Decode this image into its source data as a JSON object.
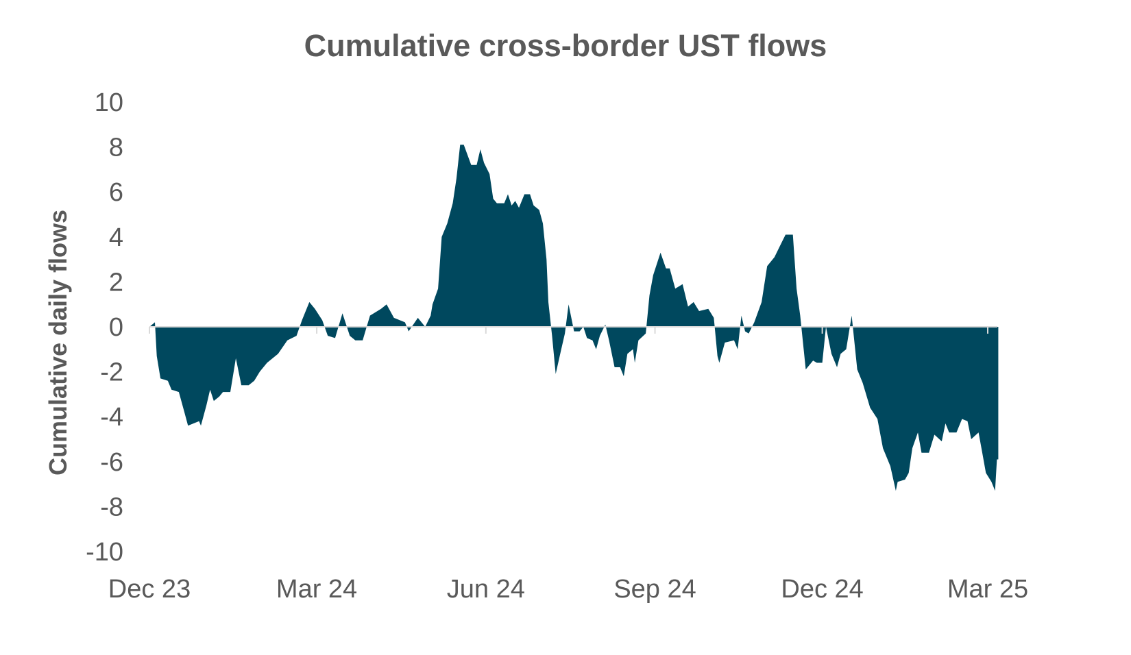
{
  "chart_data": {
    "type": "area",
    "title": "Cumulative cross-border UST flows",
    "xlabel": "",
    "ylabel": "Cumulative daily flows",
    "ylim": [
      -10,
      10
    ],
    "yticks": [
      10,
      8,
      6,
      4,
      2,
      0,
      -2,
      -4,
      -6,
      -8,
      -10
    ],
    "xticks": [
      {
        "label": "Dec 23",
        "date": "2023-12-01"
      },
      {
        "label": "Mar 24",
        "date": "2024-03-01"
      },
      {
        "label": "Jun 24",
        "date": "2024-06-01"
      },
      {
        "label": "Sep 24",
        "date": "2024-09-01"
      },
      {
        "label": "Dec 24",
        "date": "2024-12-01"
      },
      {
        "label": "Mar 25",
        "date": "2025-03-01"
      }
    ],
    "grid": false,
    "legend": "none",
    "color": "#00485E",
    "series": [
      {
        "points": [
          [
            "2023-12-01",
            0
          ],
          [
            "2023-12-04",
            0.2
          ],
          [
            "2023-12-05",
            -1.3
          ],
          [
            "2023-12-07",
            -2.3
          ],
          [
            "2023-12-11",
            -2.4
          ],
          [
            "2023-12-13",
            -2.8
          ],
          [
            "2023-12-17",
            -2.9
          ],
          [
            "2023-12-20",
            -3.8
          ],
          [
            "2023-12-22",
            -4.4
          ],
          [
            "2023-12-28",
            -4.2
          ],
          [
            "2023-12-29",
            -4.4
          ],
          [
            "2024-01-01",
            -3.5
          ],
          [
            "2024-01-03",
            -2.8
          ],
          [
            "2024-01-05",
            -3.3
          ],
          [
            "2024-01-08",
            -3.1
          ],
          [
            "2024-01-10",
            -2.9
          ],
          [
            "2024-01-14",
            -2.9
          ],
          [
            "2024-01-17",
            -1.4
          ],
          [
            "2024-01-20",
            -2.6
          ],
          [
            "2024-01-24",
            -2.6
          ],
          [
            "2024-01-27",
            -2.4
          ],
          [
            "2024-01-30",
            -2.0
          ],
          [
            "2024-02-03",
            -1.6
          ],
          [
            "2024-02-09",
            -1.2
          ],
          [
            "2024-02-14",
            -0.6
          ],
          [
            "2024-02-19",
            -0.4
          ],
          [
            "2024-02-22",
            0.3
          ],
          [
            "2024-02-26",
            1.1
          ],
          [
            "2024-02-29",
            0.8
          ],
          [
            "2024-03-04",
            0.3
          ],
          [
            "2024-03-07",
            -0.4
          ],
          [
            "2024-03-11",
            -0.5
          ],
          [
            "2024-03-15",
            0.6
          ],
          [
            "2024-03-19",
            -0.4
          ],
          [
            "2024-03-22",
            -0.6
          ],
          [
            "2024-03-26",
            -0.6
          ],
          [
            "2024-03-30",
            0.5
          ],
          [
            "2024-04-05",
            0.8
          ],
          [
            "2024-04-08",
            1.0
          ],
          [
            "2024-04-12",
            0.4
          ],
          [
            "2024-04-18",
            0.2
          ],
          [
            "2024-04-20",
            -0.2
          ],
          [
            "2024-04-25",
            0.4
          ],
          [
            "2024-04-29",
            0
          ],
          [
            "2024-05-02",
            0.5
          ],
          [
            "2024-05-03",
            1.0
          ],
          [
            "2024-05-06",
            1.7
          ],
          [
            "2024-05-08",
            4.0
          ],
          [
            "2024-05-11",
            4.6
          ],
          [
            "2024-05-14",
            5.5
          ],
          [
            "2024-05-16",
            6.6
          ],
          [
            "2024-05-18",
            8.1
          ],
          [
            "2024-05-20",
            8.1
          ],
          [
            "2024-05-24",
            7.2
          ],
          [
            "2024-05-27",
            7.2
          ],
          [
            "2024-05-29",
            7.9
          ],
          [
            "2024-05-31",
            7.3
          ],
          [
            "2024-06-03",
            6.8
          ],
          [
            "2024-06-05",
            5.7
          ],
          [
            "2024-06-07",
            5.5
          ],
          [
            "2024-06-11",
            5.5
          ],
          [
            "2024-06-13",
            5.9
          ],
          [
            "2024-06-15",
            5.4
          ],
          [
            "2024-06-17",
            5.6
          ],
          [
            "2024-06-19",
            5.3
          ],
          [
            "2024-06-22",
            5.9
          ],
          [
            "2024-06-25",
            5.9
          ],
          [
            "2024-06-27",
            5.4
          ],
          [
            "2024-06-30",
            5.2
          ],
          [
            "2024-07-02",
            4.6
          ],
          [
            "2024-07-04",
            3.0
          ],
          [
            "2024-07-05",
            1.1
          ],
          [
            "2024-07-07",
            -0.4
          ],
          [
            "2024-07-09",
            -2.1
          ],
          [
            "2024-07-12",
            -1.0
          ],
          [
            "2024-07-14",
            -0.3
          ],
          [
            "2024-07-16",
            1.0
          ],
          [
            "2024-07-19",
            -0.2
          ],
          [
            "2024-07-22",
            -0.2
          ],
          [
            "2024-07-24",
            0
          ],
          [
            "2024-07-26",
            -0.5
          ],
          [
            "2024-07-29",
            -0.6
          ],
          [
            "2024-07-31",
            -1.0
          ],
          [
            "2024-08-02",
            -0.4
          ],
          [
            "2024-08-05",
            0.1
          ],
          [
            "2024-08-07",
            -0.6
          ],
          [
            "2024-08-10",
            -1.8
          ],
          [
            "2024-08-13",
            -1.8
          ],
          [
            "2024-08-15",
            -2.2
          ],
          [
            "2024-08-17",
            -1.2
          ],
          [
            "2024-08-20",
            -1.0
          ],
          [
            "2024-08-21",
            -1.6
          ],
          [
            "2024-08-23",
            -0.6
          ],
          [
            "2024-08-27",
            -0.3
          ],
          [
            "2024-08-29",
            1.4
          ],
          [
            "2024-08-31",
            2.3
          ],
          [
            "2024-09-04",
            3.3
          ],
          [
            "2024-09-07",
            2.6
          ],
          [
            "2024-09-09",
            2.6
          ],
          [
            "2024-09-12",
            1.7
          ],
          [
            "2024-09-16",
            1.9
          ],
          [
            "2024-09-19",
            0.9
          ],
          [
            "2024-09-22",
            1.1
          ],
          [
            "2024-09-25",
            0.7
          ],
          [
            "2024-09-30",
            0.8
          ],
          [
            "2024-10-03",
            0.4
          ],
          [
            "2024-10-05",
            -1.3
          ],
          [
            "2024-10-06",
            -1.6
          ],
          [
            "2024-10-09",
            -0.7
          ],
          [
            "2024-10-14",
            -0.6
          ],
          [
            "2024-10-16",
            -1.0
          ],
          [
            "2024-10-18",
            0.5
          ],
          [
            "2024-10-20",
            -0.2
          ],
          [
            "2024-10-22",
            -0.3
          ],
          [
            "2024-10-25",
            0.2
          ],
          [
            "2024-10-29",
            1.1
          ],
          [
            "2024-11-01",
            2.7
          ],
          [
            "2024-11-05",
            3.1
          ],
          [
            "2024-11-08",
            3.6
          ],
          [
            "2024-11-11",
            4.1
          ],
          [
            "2024-11-15",
            4.1
          ],
          [
            "2024-11-17",
            1.7
          ],
          [
            "2024-11-19",
            0.5
          ],
          [
            "2024-11-22",
            -1.9
          ],
          [
            "2024-11-26",
            -1.5
          ],
          [
            "2024-11-28",
            -1.6
          ],
          [
            "2024-12-01",
            -1.6
          ],
          [
            "2024-12-03",
            0
          ],
          [
            "2024-12-06",
            -1.2
          ],
          [
            "2024-12-09",
            -1.8
          ],
          [
            "2024-12-11",
            -1.2
          ],
          [
            "2024-12-14",
            -1.0
          ],
          [
            "2024-12-17",
            0.5
          ],
          [
            "2024-12-20",
            -1.9
          ],
          [
            "2024-12-23",
            -2.5
          ],
          [
            "2024-12-27",
            -3.6
          ],
          [
            "2024-12-31",
            -4.1
          ],
          [
            "2025-01-03",
            -5.4
          ],
          [
            "2025-01-07",
            -6.2
          ],
          [
            "2025-01-10",
            -7.3
          ],
          [
            "2025-01-11",
            -6.9
          ],
          [
            "2025-01-15",
            -6.8
          ],
          [
            "2025-01-17",
            -6.5
          ],
          [
            "2025-01-19",
            -5.4
          ],
          [
            "2025-01-22",
            -4.7
          ],
          [
            "2025-01-24",
            -5.6
          ],
          [
            "2025-01-28",
            -5.6
          ],
          [
            "2025-01-31",
            -4.8
          ],
          [
            "2025-02-04",
            -5.1
          ],
          [
            "2025-02-06",
            -4.3
          ],
          [
            "2025-02-08",
            -4.7
          ],
          [
            "2025-02-12",
            -4.7
          ],
          [
            "2025-02-15",
            -4.1
          ],
          [
            "2025-02-18",
            -4.2
          ],
          [
            "2025-02-20",
            -5.0
          ],
          [
            "2025-02-24",
            -4.7
          ],
          [
            "2025-02-26",
            -5.6
          ],
          [
            "2025-02-28",
            -6.5
          ],
          [
            "2025-03-03",
            -6.9
          ],
          [
            "2025-03-05",
            -7.3
          ],
          [
            "2025-03-06",
            -5.9
          ]
        ]
      }
    ]
  }
}
